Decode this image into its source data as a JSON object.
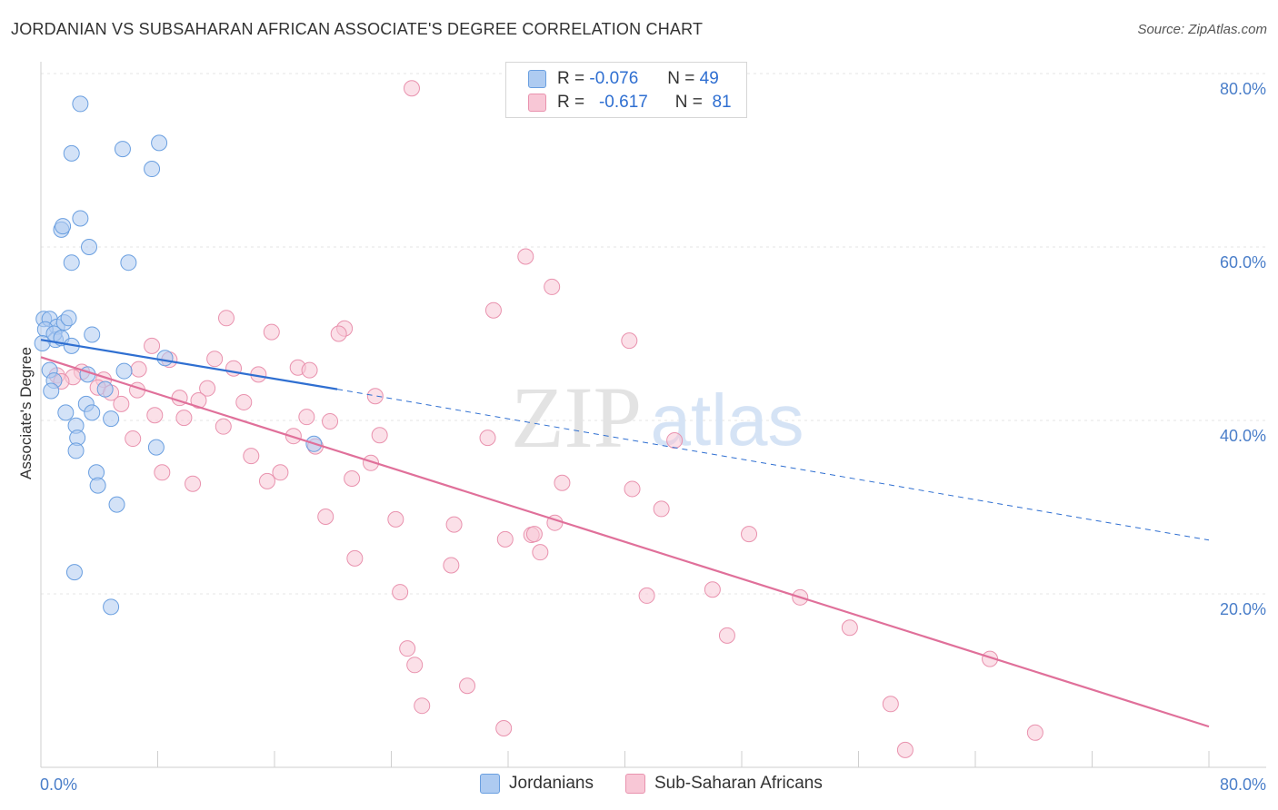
{
  "header": {
    "title": "JORDANIAN VS SUBSAHARAN AFRICAN ASSOCIATE'S DEGREE CORRELATION CHART",
    "source": "Source: ZipAtlas.com"
  },
  "legend": {
    "rows": [
      {
        "r_label": "R =",
        "r_value": "-0.076",
        "n_label": "N =",
        "n_value": "49",
        "color": "#aecbf1",
        "border": "#6a9fe0"
      },
      {
        "r_label": "R =",
        "r_value": "-0.617",
        "n_label": "N =",
        "n_value": "81",
        "color": "#f8c7d6",
        "border": "#e992ae"
      }
    ]
  },
  "bottom_legend": {
    "jordanians": "Jordanians",
    "subsaharan": "Sub-Saharan Africans"
  },
  "watermark": {
    "zip": "ZIP",
    "atlas": "atlas"
  },
  "axes": {
    "ylabel": "Associate's Degree",
    "yticks": [
      "20.0%",
      "40.0%",
      "60.0%",
      "80.0%"
    ],
    "xtick_left": "0.0%",
    "xtick_right": "80.0%"
  },
  "chart_data": {
    "type": "scatter",
    "title": "JORDANIAN VS SUBSAHARAN AFRICAN ASSOCIATE'S DEGREE CORRELATION CHART",
    "xlabel": "",
    "ylabel": "Associate's Degree",
    "xlim": [
      0,
      80
    ],
    "ylim": [
      0,
      82
    ],
    "grid": true,
    "colors": {
      "jordanians": "#6a9fe0",
      "subsaharan": "#e992ae",
      "blue_line": "#2f6fd1",
      "pink_line": "#e0709a"
    },
    "series": [
      {
        "name": "Jordanians",
        "r": -0.076,
        "n": 49,
        "points": [
          [
            2.7,
            76.5
          ],
          [
            5.6,
            71.3
          ],
          [
            8.1,
            72.0
          ],
          [
            2.1,
            70.8
          ],
          [
            7.6,
            69.0
          ],
          [
            2.7,
            63.3
          ],
          [
            1.4,
            62.0
          ],
          [
            1.5,
            62.4
          ],
          [
            3.3,
            60.0
          ],
          [
            2.1,
            58.2
          ],
          [
            6.0,
            58.2
          ],
          [
            0.2,
            51.7
          ],
          [
            0.6,
            51.7
          ],
          [
            1.1,
            50.8
          ],
          [
            1.6,
            51.3
          ],
          [
            1.9,
            51.8
          ],
          [
            0.3,
            50.5
          ],
          [
            1.0,
            49.3
          ],
          [
            0.9,
            50.0
          ],
          [
            3.5,
            49.9
          ],
          [
            1.4,
            49.5
          ],
          [
            0.1,
            48.9
          ],
          [
            2.1,
            48.6
          ],
          [
            8.5,
            47.2
          ],
          [
            0.6,
            45.8
          ],
          [
            3.2,
            45.3
          ],
          [
            5.7,
            45.7
          ],
          [
            0.9,
            44.6
          ],
          [
            4.4,
            43.6
          ],
          [
            0.7,
            43.4
          ],
          [
            3.1,
            41.9
          ],
          [
            1.7,
            40.9
          ],
          [
            3.5,
            40.9
          ],
          [
            4.8,
            40.2
          ],
          [
            2.4,
            39.4
          ],
          [
            2.5,
            38.0
          ],
          [
            7.9,
            36.9
          ],
          [
            18.7,
            37.3
          ],
          [
            2.4,
            36.5
          ],
          [
            3.8,
            34.0
          ],
          [
            3.9,
            32.5
          ],
          [
            5.2,
            30.3
          ],
          [
            2.3,
            22.5
          ],
          [
            4.8,
            18.5
          ]
        ],
        "trend_solid": [
          [
            0,
            49.3
          ],
          [
            20.3,
            43.6
          ]
        ],
        "trend_dashed": [
          [
            20.3,
            43.6
          ],
          [
            80,
            26.2
          ]
        ]
      },
      {
        "name": "Sub-Saharan Africans",
        "r": -0.617,
        "n": 81,
        "points": [
          [
            25.4,
            78.3
          ],
          [
            33.2,
            58.9
          ],
          [
            35.0,
            55.4
          ],
          [
            31.0,
            52.7
          ],
          [
            12.7,
            51.8
          ],
          [
            20.8,
            50.6
          ],
          [
            15.8,
            50.2
          ],
          [
            20.4,
            50.0
          ],
          [
            40.3,
            49.2
          ],
          [
            7.6,
            48.6
          ],
          [
            8.8,
            47.0
          ],
          [
            11.9,
            47.1
          ],
          [
            6.7,
            45.9
          ],
          [
            13.2,
            46.0
          ],
          [
            17.6,
            46.1
          ],
          [
            18.4,
            45.8
          ],
          [
            2.8,
            45.6
          ],
          [
            14.9,
            45.3
          ],
          [
            1.1,
            45.2
          ],
          [
            2.2,
            45.0
          ],
          [
            4.3,
            44.7
          ],
          [
            1.4,
            44.5
          ],
          [
            3.9,
            43.8
          ],
          [
            6.6,
            43.5
          ],
          [
            11.4,
            43.7
          ],
          [
            4.8,
            43.2
          ],
          [
            22.9,
            42.8
          ],
          [
            9.5,
            42.6
          ],
          [
            10.8,
            42.3
          ],
          [
            13.9,
            42.1
          ],
          [
            5.5,
            41.9
          ],
          [
            7.8,
            40.6
          ],
          [
            9.8,
            40.3
          ],
          [
            18.2,
            40.4
          ],
          [
            19.8,
            39.9
          ],
          [
            12.5,
            39.3
          ],
          [
            17.3,
            38.2
          ],
          [
            23.2,
            38.3
          ],
          [
            30.6,
            38.0
          ],
          [
            43.4,
            37.7
          ],
          [
            6.3,
            37.9
          ],
          [
            18.8,
            37.0
          ],
          [
            14.4,
            35.9
          ],
          [
            22.6,
            35.1
          ],
          [
            8.3,
            34.0
          ],
          [
            16.4,
            34.0
          ],
          [
            10.4,
            32.7
          ],
          [
            15.5,
            33.0
          ],
          [
            21.3,
            33.3
          ],
          [
            35.7,
            32.8
          ],
          [
            40.5,
            32.1
          ],
          [
            42.5,
            29.8
          ],
          [
            19.5,
            28.9
          ],
          [
            24.3,
            28.6
          ],
          [
            28.3,
            28.0
          ],
          [
            35.2,
            28.2
          ],
          [
            33.6,
            26.8
          ],
          [
            33.8,
            26.9
          ],
          [
            48.5,
            26.9
          ],
          [
            31.8,
            26.3
          ],
          [
            34.2,
            24.8
          ],
          [
            21.5,
            24.1
          ],
          [
            28.1,
            23.3
          ],
          [
            24.6,
            20.2
          ],
          [
            41.5,
            19.8
          ],
          [
            46.0,
            20.5
          ],
          [
            52.0,
            19.6
          ],
          [
            55.4,
            16.1
          ],
          [
            47.0,
            15.2
          ],
          [
            25.1,
            13.7
          ],
          [
            25.6,
            11.8
          ],
          [
            65.0,
            12.5
          ],
          [
            29.2,
            9.4
          ],
          [
            26.1,
            7.1
          ],
          [
            58.2,
            7.3
          ],
          [
            31.7,
            4.5
          ],
          [
            68.1,
            4.0
          ],
          [
            59.2,
            2.0
          ]
        ],
        "trend": [
          [
            0,
            47.3
          ],
          [
            80,
            4.7
          ]
        ]
      }
    ]
  }
}
